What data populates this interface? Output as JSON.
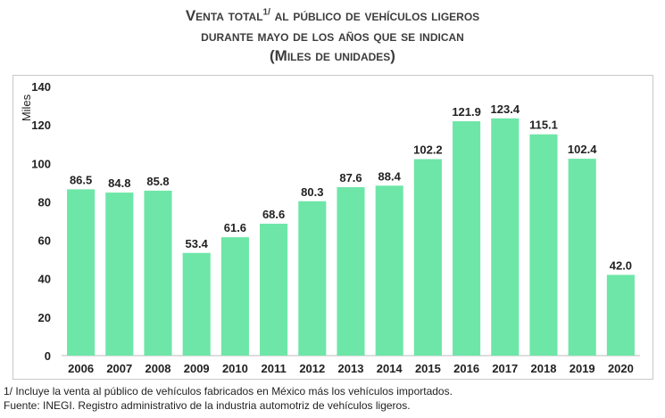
{
  "title": {
    "line1_prefix": "Venta total",
    "line1_sup": "1/",
    "line1_suffix": " al público de vehículos ligeros",
    "line2": "durante mayo de los años que se indican",
    "line3": "(Miles de unidades)"
  },
  "chart_data": {
    "type": "bar",
    "title": "Venta total1/ al público de vehículos ligeros durante mayo de los años que se indican (Miles de unidades)",
    "ylabel": "Miles",
    "xlabel": "",
    "ylim": [
      0,
      140
    ],
    "yticks": [
      "0",
      "20",
      "40",
      "60",
      "80",
      "100",
      "120",
      "140"
    ],
    "categories": [
      "2006",
      "2007",
      "2008",
      "2009",
      "2010",
      "2011",
      "2012",
      "2013",
      "2014",
      "2015",
      "2016",
      "2017",
      "2018",
      "2019",
      "2020"
    ],
    "values": [
      86.5,
      84.8,
      85.8,
      53.4,
      61.6,
      68.6,
      80.3,
      87.6,
      88.4,
      102.2,
      121.9,
      123.4,
      115.1,
      102.4,
      42.0
    ],
    "value_labels": [
      "86.5",
      "84.8",
      "85.8",
      "53.4",
      "61.6",
      "68.6",
      "80.3",
      "87.6",
      "88.4",
      "102.2",
      "121.9",
      "123.4",
      "115.1",
      "102.4",
      "42.0"
    ],
    "bar_color": "#6ee6a8",
    "grid": false
  },
  "footnotes": {
    "note": "1/ Incluye la venta al público de vehículos fabricados en México más los vehículos importados.",
    "source": "Fuente: INEGI. Registro administrativo de la industria automotriz de vehículos ligeros."
  }
}
